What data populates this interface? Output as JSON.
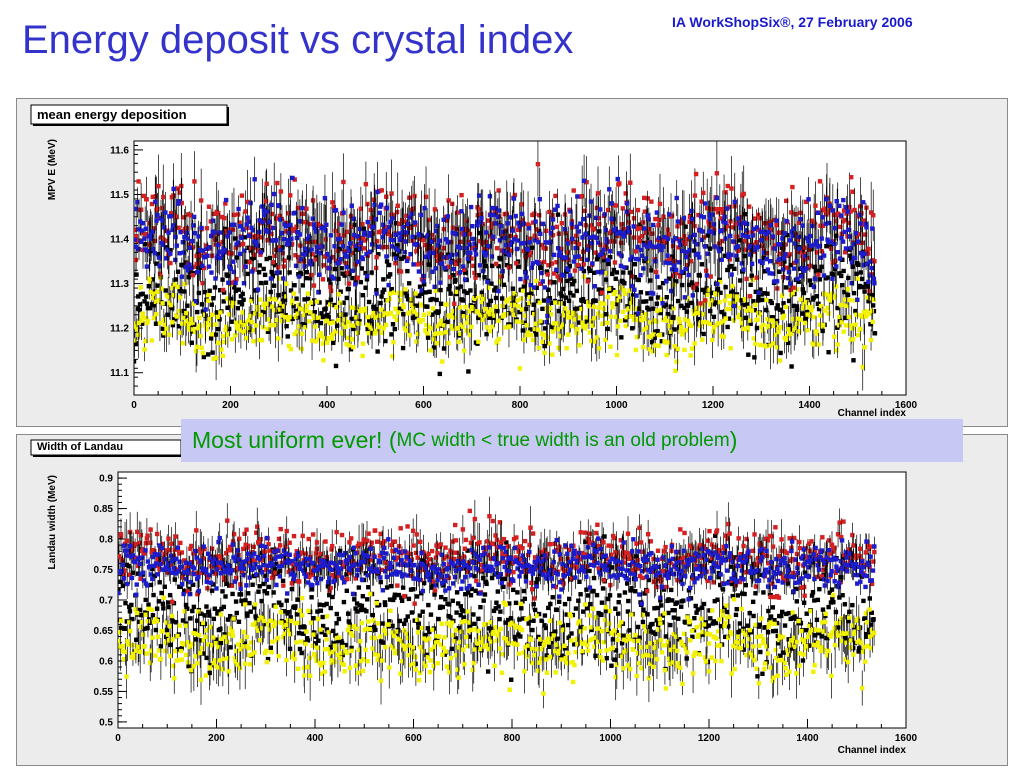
{
  "slide": {
    "title": "Energy deposit vs crystal index",
    "subtitle": "IA WorkShopSix®, 27 February 2006",
    "callout": {
      "main": "Most uniform ever! (",
      "detail": "MC width < true width is an old problem",
      "close": ")",
      "color": "#009900",
      "background": "#c8c8f4"
    }
  },
  "colors": {
    "title": "#3333cc",
    "series": {
      "red": "#d42020",
      "blue": "#1c1ccc",
      "yellow": "#f2f200",
      "black": "#000000"
    }
  },
  "chart_data": [
    {
      "type": "scatter",
      "title": "mean energy deposition",
      "xlabel": "Channel index",
      "ylabel": "MPV E (MeV)",
      "xlim": [
        0,
        1600
      ],
      "ylim": [
        11.05,
        11.62
      ],
      "xticks": [
        "0",
        "200",
        "400",
        "600",
        "800",
        "1000",
        "1200",
        "1400",
        "1600"
      ],
      "yticks": [
        "11.1",
        "11.2",
        "11.3",
        "11.4",
        "11.5",
        "11.6"
      ],
      "n_points": 1536,
      "error_bars": true,
      "grid": false,
      "series": [
        {
          "color": "red",
          "mean": 11.41,
          "spread": 0.065
        },
        {
          "color": "blue",
          "mean": 11.39,
          "spread": 0.06
        },
        {
          "color": "black",
          "mean": 11.28,
          "spread": 0.07
        },
        {
          "color": "yellow",
          "mean": 11.22,
          "spread": 0.045
        }
      ]
    },
    {
      "type": "scatter",
      "title": "Width of Landau",
      "xlabel": "Channel index",
      "ylabel": "Landau width (MeV)",
      "xlim": [
        0,
        1600
      ],
      "ylim": [
        0.49,
        0.91
      ],
      "xticks": [
        "0",
        "200",
        "400",
        "600",
        "800",
        "1000",
        "1200",
        "1400",
        "1600"
      ],
      "yticks": [
        "0.5",
        "0.55",
        "0.6",
        "0.65",
        "0.7",
        "0.75",
        "0.8",
        "0.85",
        "0.9"
      ],
      "n_points": 1536,
      "error_bars": true,
      "grid": false,
      "series": [
        {
          "color": "red",
          "mean": 0.77,
          "spread": 0.03
        },
        {
          "color": "blue",
          "mean": 0.755,
          "spread": 0.022
        },
        {
          "color": "black",
          "mean": 0.68,
          "spread": 0.05
        },
        {
          "color": "yellow",
          "mean": 0.63,
          "spread": 0.035
        }
      ]
    }
  ]
}
